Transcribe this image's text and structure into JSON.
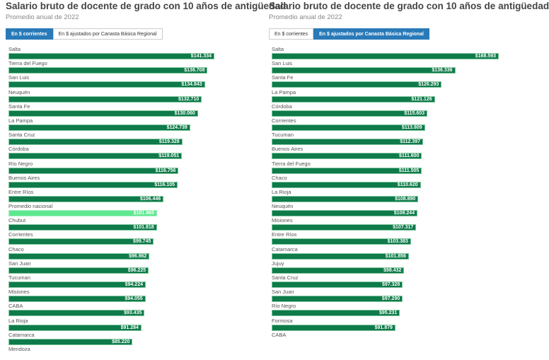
{
  "charts": [
    {
      "title": "Salario bruto de docente de grado con 10 años de antigüedad",
      "subtitle": "Promedio anual de 2022",
      "buttons": [
        {
          "label": "En $ corrientes",
          "active": true
        },
        {
          "label": "En $ ajustados por Canasta Básica Regional",
          "active": false
        }
      ]
    },
    {
      "title": "Salario bruto de docente de grado con 10 años de antigüedad",
      "subtitle": "Promedio anual de 2022",
      "buttons": [
        {
          "label": "En $ corrientes",
          "active": false
        },
        {
          "label": "En $ ajustados por Canasta Básica Regional",
          "active": true
        }
      ]
    }
  ],
  "colors": {
    "bar": "#0f7a4a",
    "highlight": "#5ee88f",
    "active_button": "#2a7ab8"
  },
  "chart_data": [
    {
      "type": "bar",
      "orientation": "horizontal",
      "title": "Salario bruto de docente de grado con 10 años de antigüedad",
      "subtitle": "Promedio anual de 2022",
      "categories": [
        "Salta",
        "Tierra del Fuego",
        "San Luis",
        "Neuquén",
        "Santa Fe",
        "La Pampa",
        "Santa Cruz",
        "Córdoba",
        "Río Negro",
        "Buenos Aires",
        "Entre Ríos",
        "Promedio nacional",
        "Chubut",
        "Corrientes",
        "Chaco",
        "San Juan",
        "Tucuman",
        "Misiones",
        "CABA",
        "La Rioja",
        "Catamarca",
        "Mendoza"
      ],
      "values": [
        141334,
        136708,
        134843,
        132710,
        130060,
        124739,
        119328,
        119051,
        116756,
        116105,
        106446,
        101965,
        101818,
        99745,
        96862,
        96225,
        94224,
        94055,
        93435,
        91284,
        85220,
        null
      ],
      "labels": [
        "$141.334",
        "$136.708",
        "$134.843",
        "$132.710",
        "$130.060",
        "$124.739",
        "$119.328",
        "$119.051",
        "$116.756",
        "$116.105",
        "$106.446",
        "$101.965",
        "$101.818",
        "$99.745",
        "$96.862",
        "$96.225",
        "$94.224",
        "$94.055",
        "$93.435",
        "$91.284",
        "$85.220",
        ""
      ],
      "highlight": "Promedio nacional"
    },
    {
      "type": "bar",
      "orientation": "horizontal",
      "title": "Salario bruto de docente de grado con 10 años de antigüedad",
      "subtitle": "Promedio anual de 2022",
      "categories": [
        "Salta",
        "San Luis",
        "Santa Fe",
        "La Pampa",
        "Córdoba",
        "Corrientes",
        "Tucuman",
        "Buenos Aires",
        "Tierra del Fuego",
        "Chaco",
        "La Rioja",
        "Neuquén",
        "Misiones",
        "Entre Ríos",
        "Catamarca",
        "Jujuy",
        "Santa Cruz",
        "San Juan",
        "Río Negro",
        "Formosa",
        "CABA"
      ],
      "values": [
        168593,
        136336,
        126293,
        121126,
        115603,
        113809,
        112397,
        111600,
        111505,
        110620,
        108890,
        108244,
        107317,
        103383,
        101856,
        98432,
        97328,
        97290,
        95231,
        91879,
        null
      ],
      "labels": [
        "$168.593",
        "$136.336",
        "$126.293",
        "$121.126",
        "$115.603",
        "$113.809",
        "$112.397",
        "$111.600",
        "$111.505",
        "$110.620",
        "$108.890",
        "$108.244",
        "$107.317",
        "$103.383",
        "$101.856",
        "$98.432",
        "$97.328",
        "$97.290",
        "$95.231",
        "$91.879",
        ""
      ],
      "highlight": null
    }
  ]
}
